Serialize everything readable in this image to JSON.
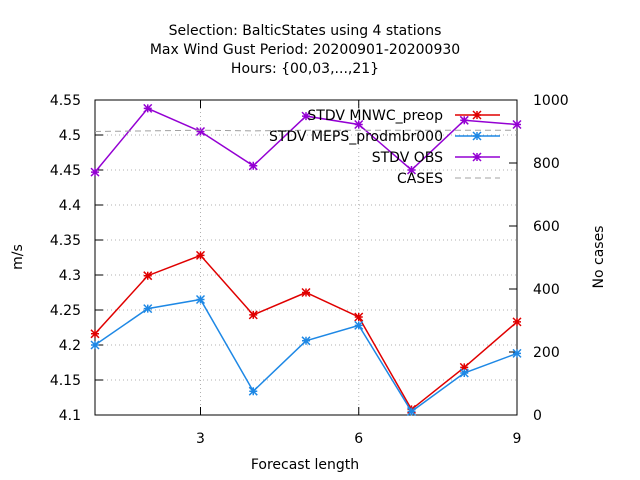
{
  "chart_data": {
    "type": "line",
    "title_lines": [
      "Selection: BalticStates using     4 stations",
      "Max Wind Gust   Period: 20200901-20200930",
      "Hours: {00,03,...,21}"
    ],
    "xlabel": "Forecast length",
    "ylabel": "m/s",
    "y2label": "No cases",
    "xlim": [
      1,
      9
    ],
    "ylim": [
      4.1,
      4.55
    ],
    "y2lim": [
      0,
      1000
    ],
    "x_ticks": [
      "3",
      "6",
      "9"
    ],
    "y_ticks": [
      "4.1",
      "4.15",
      "4.2",
      "4.25",
      "4.3",
      "4.35",
      "4.4",
      "4.45",
      "4.5",
      "4.55"
    ],
    "y2_ticks": [
      "0",
      "200",
      "400",
      "600",
      "800",
      "1000"
    ],
    "grid": true,
    "legend_position": "top-right",
    "x": [
      1,
      2,
      3,
      4,
      5,
      6,
      7,
      8,
      9
    ],
    "series": [
      {
        "name": "STDV MNWC_preop",
        "color": "#e00000",
        "axis": "y",
        "values": [
          4.216,
          4.299,
          4.328,
          4.243,
          4.275,
          4.24,
          4.108,
          4.168,
          4.233
        ]
      },
      {
        "name": "STDV MEPS_prodmbr000",
        "color": "#1e88e5",
        "axis": "y",
        "values": [
          4.2,
          4.252,
          4.265,
          4.134,
          4.206,
          4.228,
          4.105,
          4.16,
          4.188
        ]
      },
      {
        "name": "STDV OBS",
        "color": "#9400d3",
        "axis": "y",
        "values": [
          4.447,
          4.538,
          4.505,
          4.456,
          4.527,
          4.515,
          4.45,
          4.521,
          4.515
        ]
      },
      {
        "name": "CASES",
        "color": "#a0a0a0",
        "axis": "y2",
        "dashed": true,
        "values": [
          900,
          902,
          904,
          902,
          904,
          904,
          904,
          904,
          904
        ]
      }
    ]
  }
}
